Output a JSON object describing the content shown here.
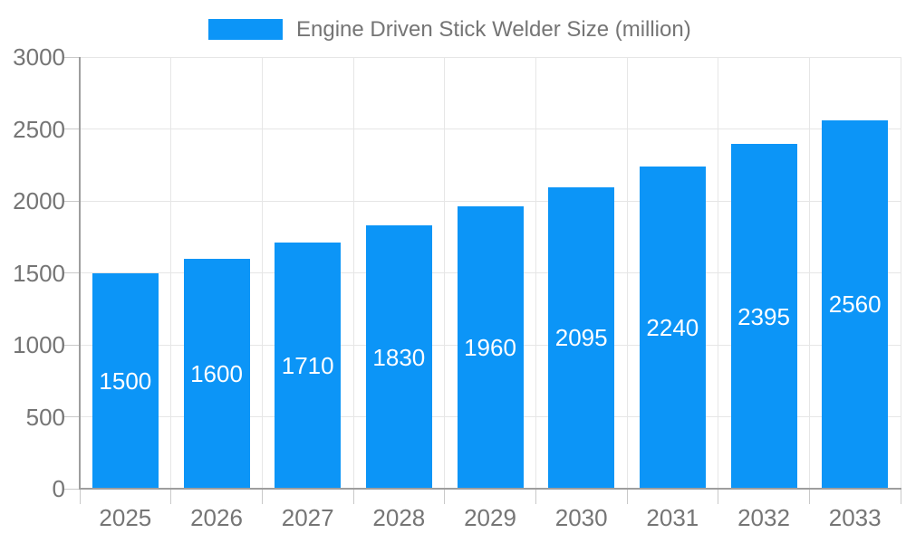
{
  "legend": {
    "label": "Engine Driven Stick Welder Size (million)"
  },
  "colors": {
    "bar": "#0C95F7",
    "text": "#757575",
    "gridline": "#E6E6E6",
    "tick": "#C9C9C9",
    "axis": "#9E9E9E",
    "value_label": "#FFFFFF",
    "background": "#FFFFFF"
  },
  "chart_data": {
    "type": "bar",
    "title": "Engine Driven Stick Welder Size (million)",
    "categories": [
      "2025",
      "2026",
      "2027",
      "2028",
      "2029",
      "2030",
      "2031",
      "2032",
      "2033"
    ],
    "values": [
      1500,
      1600,
      1710,
      1830,
      1960,
      2095,
      2240,
      2395,
      2560
    ],
    "series_name": "Engine Driven Stick Welder Size (million)",
    "xlabel": "",
    "ylabel": "",
    "ylim": [
      0,
      3000
    ],
    "yticks": [
      0,
      500,
      1000,
      1500,
      2000,
      2500,
      3000
    ],
    "grid": true,
    "legend_position": "top",
    "value_labels": "inside-center-white"
  }
}
